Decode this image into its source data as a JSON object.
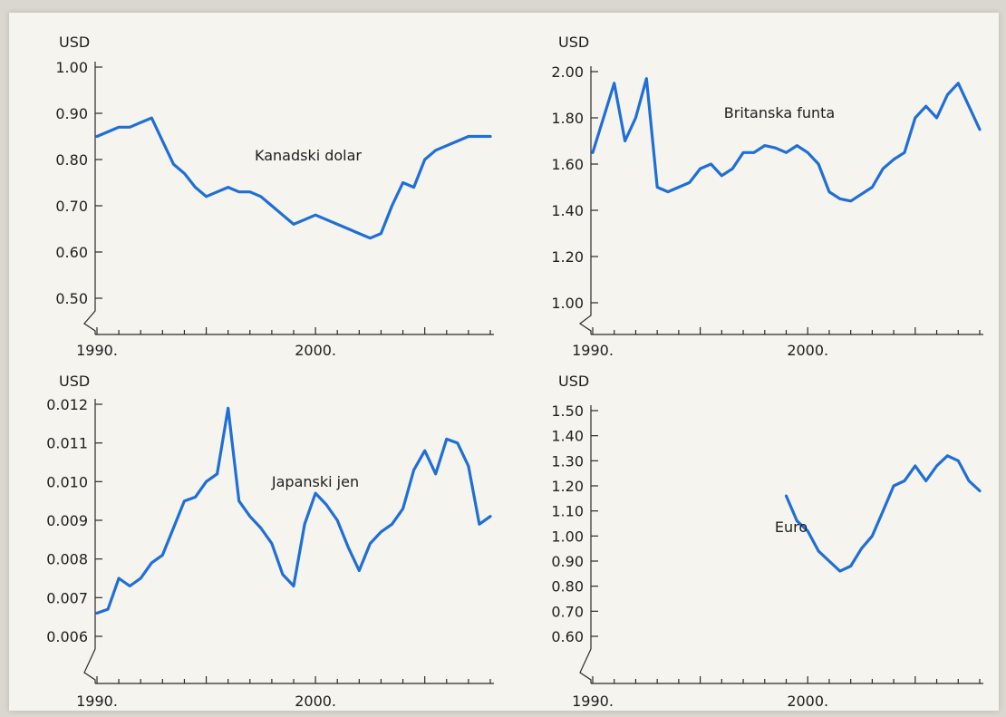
{
  "chart_data": [
    {
      "type": "line",
      "title": "",
      "ylabel": "USD",
      "series_label": "Kanadski dolar",
      "x_tick_labels": [
        "1990.",
        "2000."
      ],
      "y_tick_labels": [
        "0.50",
        "0.60",
        "0.70",
        "0.80",
        "0.90",
        "1.00"
      ],
      "ylim": [
        0.5,
        1.0
      ],
      "xlim": [
        1990,
        2008
      ],
      "axis_break": true,
      "color": "#1f6fd6",
      "series": [
        {
          "x": [
            1990,
            1990.5,
            1991,
            1991.5,
            1992,
            1992.5,
            1993,
            1993.5,
            1994,
            1994.5,
            1995,
            1995.5,
            1996,
            1996.5,
            1997,
            1997.5,
            1998,
            1998.5,
            1999,
            1999.5,
            2000,
            2000.5,
            2001,
            2001.5,
            2002,
            2002.5,
            2003,
            2003.5,
            2004,
            2004.5,
            2005,
            2005.5,
            2006,
            2006.5,
            2007,
            2007.5,
            2008
          ],
          "values": [
            0.85,
            0.86,
            0.87,
            0.87,
            0.88,
            0.89,
            0.84,
            0.79,
            0.77,
            0.74,
            0.72,
            0.73,
            0.74,
            0.73,
            0.73,
            0.72,
            0.7,
            0.68,
            0.66,
            0.67,
            0.68,
            0.67,
            0.66,
            0.65,
            0.64,
            0.63,
            0.64,
            0.7,
            0.75,
            0.74,
            0.8,
            0.82,
            0.83,
            0.84,
            0.85,
            0.85,
            0.85
          ]
        }
      ]
    },
    {
      "type": "line",
      "title": "",
      "ylabel": "USD",
      "series_label": "Britanska funta",
      "x_tick_labels": [
        "1990.",
        "2000."
      ],
      "y_tick_labels": [
        "1.00",
        "1.20",
        "1.40",
        "1.60",
        "1.80",
        "2.00"
      ],
      "ylim": [
        1.0,
        2.0
      ],
      "xlim": [
        1990,
        2008
      ],
      "axis_break": true,
      "color": "#1f6fd6",
      "series": [
        {
          "x": [
            1990,
            1990.5,
            1991,
            1991.5,
            1992,
            1992.5,
            1993,
            1993.5,
            1994,
            1994.5,
            1995,
            1995.5,
            1996,
            1996.5,
            1997,
            1997.5,
            1998,
            1998.5,
            1999,
            1999.5,
            2000,
            2000.5,
            2001,
            2001.5,
            2002,
            2002.5,
            2003,
            2003.5,
            2004,
            2004.5,
            2005,
            2005.5,
            2006,
            2006.5,
            2007,
            2007.5,
            2008
          ],
          "values": [
            1.65,
            1.8,
            1.95,
            1.7,
            1.8,
            1.97,
            1.5,
            1.48,
            1.5,
            1.52,
            1.58,
            1.6,
            1.55,
            1.58,
            1.65,
            1.65,
            1.68,
            1.67,
            1.65,
            1.68,
            1.65,
            1.6,
            1.48,
            1.45,
            1.44,
            1.47,
            1.5,
            1.58,
            1.62,
            1.65,
            1.8,
            1.85,
            1.8,
            1.9,
            1.95,
            1.85,
            1.75
          ]
        }
      ]
    },
    {
      "type": "line",
      "title": "",
      "ylabel": "USD",
      "series_label": "Japanski jen",
      "x_tick_labels": [
        "1990.",
        "2000."
      ],
      "y_tick_labels": [
        "0.006",
        "0.007",
        "0.008",
        "0.009",
        "0.010",
        "0.011",
        "0.012"
      ],
      "ylim": [
        0.006,
        0.012
      ],
      "xlim": [
        1990,
        2008
      ],
      "axis_break": true,
      "color": "#1f6fd6",
      "series": [
        {
          "x": [
            1990,
            1990.5,
            1991,
            1991.5,
            1992,
            1992.5,
            1993,
            1993.5,
            1994,
            1994.5,
            1995,
            1995.5,
            1996,
            1996.5,
            1997,
            1997.5,
            1998,
            1998.5,
            1999,
            1999.5,
            2000,
            2000.5,
            2001,
            2001.5,
            2002,
            2002.5,
            2003,
            2003.5,
            2004,
            2004.5,
            2005,
            2005.5,
            2006,
            2006.5,
            2007,
            2007.5,
            2008
          ],
          "values": [
            0.0066,
            0.0067,
            0.0075,
            0.0073,
            0.0075,
            0.0079,
            0.0081,
            0.0088,
            0.0095,
            0.0096,
            0.01,
            0.0102,
            0.0119,
            0.0095,
            0.0091,
            0.0088,
            0.0084,
            0.0076,
            0.0073,
            0.0089,
            0.0097,
            0.0094,
            0.009,
            0.0083,
            0.0077,
            0.0084,
            0.0087,
            0.0089,
            0.0093,
            0.0103,
            0.0108,
            0.0102,
            0.0111,
            0.011,
            0.0104,
            0.0089,
            0.0091
          ]
        }
      ]
    },
    {
      "type": "line",
      "title": "",
      "ylabel": "USD",
      "series_label": "Euro",
      "x_tick_labels": [
        "1990.",
        "2000."
      ],
      "y_tick_labels": [
        "0.60",
        "0.70",
        "0.80",
        "0.90",
        "1.00",
        "1.10",
        "1.20",
        "1.30",
        "1.40",
        "1.50"
      ],
      "ylim": [
        0.6,
        1.5
      ],
      "xlim": [
        1990,
        2008
      ],
      "axis_break": true,
      "color": "#1f6fd6",
      "series": [
        {
          "x": [
            1999,
            1999.5,
            2000,
            2000.5,
            2001,
            2001.5,
            2002,
            2002.5,
            2003,
            2003.5,
            2004,
            2004.5,
            2005,
            2005.5,
            2006,
            2006.5,
            2007,
            2007.5,
            2008
          ],
          "values": [
            1.16,
            1.06,
            1.02,
            0.94,
            0.9,
            0.86,
            0.88,
            0.95,
            1.0,
            1.1,
            1.2,
            1.22,
            1.28,
            1.22,
            1.28,
            1.32,
            1.3,
            1.22,
            1.18
          ]
        }
      ]
    }
  ]
}
